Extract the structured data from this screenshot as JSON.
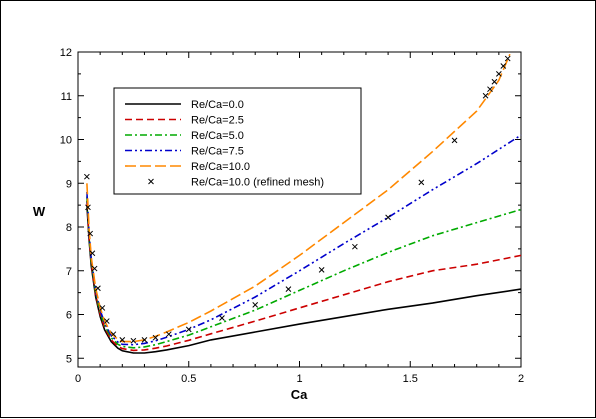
{
  "chart_data": {
    "type": "line",
    "title": "",
    "xlabel": "Ca",
    "ylabel": "W",
    "xlim": [
      0,
      2
    ],
    "ylim": [
      4.8,
      12
    ],
    "xticks": [
      "0",
      "0.5",
      "1",
      "1.5",
      "2"
    ],
    "yticks": [
      "5",
      "6",
      "7",
      "8",
      "9",
      "10",
      "11",
      "12"
    ],
    "grid": false,
    "legend_position": "top-left",
    "series": [
      {
        "name": "Re/Ca=0.0",
        "color": "#000000",
        "style": "solid",
        "x": [
          0.04,
          0.05,
          0.06,
          0.08,
          0.1,
          0.12,
          0.15,
          0.18,
          0.2,
          0.25,
          0.3,
          0.35,
          0.4,
          0.5,
          0.6,
          0.8,
          1.0,
          1.2,
          1.4,
          1.6,
          1.8,
          2.0
        ],
        "y": [
          8.5,
          7.7,
          7.1,
          6.4,
          5.95,
          5.65,
          5.38,
          5.23,
          5.17,
          5.12,
          5.12,
          5.15,
          5.19,
          5.29,
          5.42,
          5.6,
          5.78,
          5.95,
          6.12,
          6.26,
          6.43,
          6.58
        ]
      },
      {
        "name": "Re/Ca=2.5",
        "color": "#cc0000",
        "style": "dashed",
        "x": [
          0.04,
          0.05,
          0.06,
          0.08,
          0.1,
          0.12,
          0.15,
          0.18,
          0.2,
          0.25,
          0.3,
          0.35,
          0.4,
          0.5,
          0.6,
          0.8,
          1.0,
          1.2,
          1.4,
          1.6,
          1.8,
          2.0
        ],
        "y": [
          8.6,
          7.75,
          7.15,
          6.45,
          6.0,
          5.7,
          5.42,
          5.27,
          5.22,
          5.18,
          5.19,
          5.23,
          5.28,
          5.41,
          5.56,
          5.85,
          6.15,
          6.45,
          6.75,
          7.0,
          7.15,
          7.35
        ]
      },
      {
        "name": "Re/Ca=5.0",
        "color": "#00aa00",
        "style": "dashdot",
        "x": [
          0.04,
          0.05,
          0.06,
          0.08,
          0.1,
          0.12,
          0.15,
          0.18,
          0.2,
          0.25,
          0.3,
          0.35,
          0.4,
          0.5,
          0.6,
          0.8,
          1.0,
          1.2,
          1.4,
          1.6,
          1.8,
          2.0
        ],
        "y": [
          8.7,
          7.8,
          7.2,
          6.5,
          6.05,
          5.75,
          5.47,
          5.32,
          5.27,
          5.24,
          5.26,
          5.31,
          5.38,
          5.53,
          5.72,
          6.1,
          6.55,
          7.0,
          7.42,
          7.8,
          8.1,
          8.4
        ]
      },
      {
        "name": "Re/Ca=7.5",
        "color": "#0000cc",
        "style": "dashdotdot",
        "x": [
          0.04,
          0.05,
          0.06,
          0.08,
          0.1,
          0.12,
          0.15,
          0.18,
          0.2,
          0.25,
          0.3,
          0.35,
          0.4,
          0.5,
          0.6,
          0.8,
          1.0,
          1.2,
          1.4,
          1.6,
          1.8,
          2.0
        ],
        "y": [
          8.8,
          7.85,
          7.25,
          6.55,
          6.1,
          5.8,
          5.52,
          5.37,
          5.32,
          5.31,
          5.34,
          5.4,
          5.48,
          5.66,
          5.88,
          6.4,
          7.0,
          7.62,
          8.22,
          8.85,
          9.45,
          10.1
        ]
      },
      {
        "name": "Re/Ca=10.0",
        "color": "#ff8800",
        "style": "longdash",
        "x": [
          0.04,
          0.05,
          0.06,
          0.08,
          0.1,
          0.12,
          0.15,
          0.18,
          0.2,
          0.25,
          0.3,
          0.35,
          0.4,
          0.5,
          0.6,
          0.8,
          1.0,
          1.2,
          1.4,
          1.6,
          1.8,
          1.9,
          1.95
        ],
        "y": [
          9.0,
          7.95,
          7.3,
          6.6,
          6.15,
          5.85,
          5.57,
          5.43,
          5.38,
          5.38,
          5.42,
          5.5,
          5.6,
          5.82,
          6.08,
          6.65,
          7.35,
          8.1,
          8.85,
          9.72,
          10.65,
          11.35,
          11.95
        ]
      },
      {
        "name": "Re/Ca=10.0 (refined mesh)",
        "color": "#000000",
        "style": "marker-x",
        "x": [
          0.04,
          0.045,
          0.055,
          0.065,
          0.075,
          0.09,
          0.11,
          0.13,
          0.16,
          0.2,
          0.25,
          0.3,
          0.35,
          0.41,
          0.5,
          0.65,
          0.8,
          0.95,
          1.1,
          1.25,
          1.4,
          1.55,
          1.7,
          1.84,
          1.86,
          1.88,
          1.9,
          1.92,
          1.94
        ],
        "y": [
          9.15,
          8.45,
          7.85,
          7.4,
          7.05,
          6.6,
          6.15,
          5.85,
          5.55,
          5.42,
          5.4,
          5.42,
          5.47,
          5.55,
          5.66,
          5.92,
          6.22,
          6.58,
          7.02,
          7.55,
          8.22,
          9.02,
          9.98,
          11.0,
          11.15,
          11.32,
          11.5,
          11.68,
          11.85
        ]
      }
    ]
  }
}
